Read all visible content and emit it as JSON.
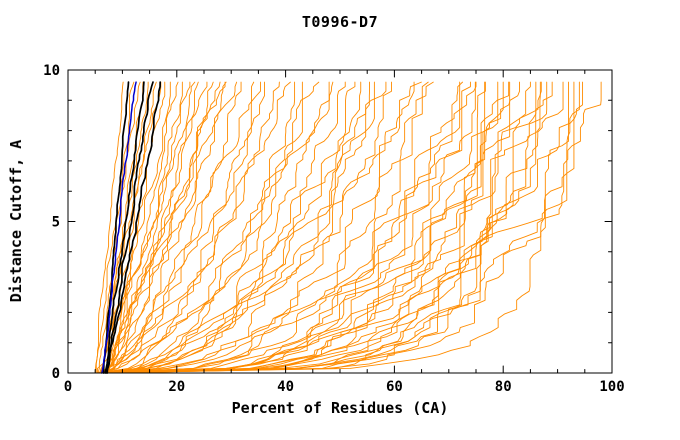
{
  "title": "T0996-D7",
  "chart_data": {
    "type": "line",
    "title": "T0996-D7",
    "xlabel": "Percent of Residues (CA)",
    "ylabel": "Distance Cutoff, A",
    "xlim": [
      0,
      100
    ],
    "ylim": [
      0,
      10
    ],
    "xticks": [
      0,
      20,
      40,
      60,
      80,
      100
    ],
    "yticks": [
      0,
      5,
      10
    ],
    "x_minor_step": 5,
    "y_minor_step": 1,
    "curve_top_y": 9.6,
    "grid": false,
    "legend": "none",
    "colors": {
      "background": "#ffffff",
      "axis": "#000000",
      "tick_text": "#000000",
      "orange": "#ff8c00",
      "black": "#000000",
      "blue": "#0000cd"
    },
    "curve_format": [
      "start_x_at_y0",
      "end_x_at_top",
      "shape_exponent",
      "seed"
    ],
    "series": [
      {
        "name": "orange-curves",
        "color": "#ff8c00",
        "width": 0.9,
        "jitter": 0.06,
        "curves": [
          [
            5.0,
            10.5,
            1.2,
            11
          ],
          [
            5.2,
            12,
            1.1,
            12
          ],
          [
            5.5,
            13,
            1.0,
            13
          ],
          [
            6.0,
            14,
            0.95,
            14
          ],
          [
            6.2,
            15,
            1.0,
            15
          ],
          [
            5.8,
            16,
            0.9,
            16
          ],
          [
            6.5,
            17,
            0.95,
            17
          ],
          [
            7.0,
            18,
            0.9,
            18
          ],
          [
            6.8,
            19,
            0.85,
            19
          ],
          [
            7.2,
            20,
            0.9,
            20
          ],
          [
            5.4,
            21,
            0.8,
            21
          ],
          [
            6.1,
            22,
            0.85,
            22
          ],
          [
            6.6,
            23,
            0.8,
            23
          ],
          [
            7.4,
            24,
            0.8,
            24
          ],
          [
            5.9,
            25,
            0.75,
            25
          ],
          [
            6.3,
            26,
            0.78,
            26
          ],
          [
            7.1,
            27,
            0.75,
            27
          ],
          [
            6.7,
            28,
            0.72,
            28
          ],
          [
            5.6,
            29,
            0.7,
            29
          ],
          [
            7.3,
            30,
            0.7,
            30
          ],
          [
            5.5,
            32,
            0.6,
            31
          ],
          [
            6.0,
            34,
            0.62,
            32
          ],
          [
            6.5,
            36,
            0.58,
            33
          ],
          [
            5.8,
            38,
            0.55,
            34
          ],
          [
            6.2,
            40,
            0.55,
            35
          ],
          [
            7.0,
            42,
            0.52,
            36
          ],
          [
            5.4,
            44,
            0.5,
            37
          ],
          [
            6.6,
            46,
            0.5,
            38
          ],
          [
            6.1,
            48,
            0.48,
            39
          ],
          [
            5.7,
            50,
            0.45,
            40
          ],
          [
            6.9,
            52,
            0.45,
            41
          ],
          [
            6.4,
            54,
            0.42,
            42
          ],
          [
            5.9,
            56,
            0.4,
            43
          ],
          [
            6.3,
            58,
            0.4,
            44
          ],
          [
            7.2,
            60,
            0.38,
            45
          ],
          [
            5.6,
            35,
            0.6,
            46
          ],
          [
            6.8,
            45,
            0.5,
            47
          ],
          [
            6.0,
            55,
            0.42,
            48
          ],
          [
            5.5,
            62,
            0.35,
            51
          ],
          [
            6.0,
            64,
            0.33,
            52
          ],
          [
            6.5,
            66,
            0.32,
            53
          ],
          [
            5.8,
            68,
            0.3,
            54
          ],
          [
            6.2,
            70,
            0.3,
            55
          ],
          [
            7.0,
            72,
            0.28,
            56
          ],
          [
            5.4,
            74,
            0.27,
            57
          ],
          [
            6.6,
            76,
            0.26,
            58
          ],
          [
            6.1,
            78,
            0.25,
            59
          ],
          [
            5.7,
            80,
            0.24,
            60
          ],
          [
            6.9,
            82,
            0.23,
            61
          ],
          [
            6.4,
            84,
            0.22,
            62
          ],
          [
            5.9,
            86,
            0.21,
            63
          ],
          [
            6.3,
            88,
            0.2,
            64
          ],
          [
            7.2,
            90,
            0.19,
            65
          ],
          [
            5.6,
            92,
            0.18,
            66
          ],
          [
            6.8,
            94,
            0.17,
            67
          ],
          [
            6.0,
            96,
            0.16,
            68
          ],
          [
            5.2,
            75,
            0.26,
            69
          ],
          [
            6.7,
            79,
            0.24,
            70
          ],
          [
            7.1,
            83,
            0.22,
            71
          ],
          [
            5.3,
            85,
            0.21,
            72
          ],
          [
            6.5,
            87,
            0.2,
            73
          ],
          [
            5.8,
            89,
            0.19,
            74
          ],
          [
            6.2,
            91,
            0.18,
            75
          ],
          [
            7.0,
            81,
            0.23,
            76
          ],
          [
            5.5,
            77,
            0.25,
            77
          ],
          [
            6.4,
            73,
            0.28,
            78
          ]
        ]
      },
      {
        "name": "black-curves",
        "color": "#000000",
        "width": 1.7,
        "jitter": 0.04,
        "curves": [
          [
            6.5,
            11,
            1.0,
            1
          ],
          [
            6.8,
            14,
            1.0,
            2
          ],
          [
            7.0,
            15.5,
            1.0,
            4
          ],
          [
            7.2,
            17,
            0.95,
            3
          ]
        ]
      },
      {
        "name": "blue-curve",
        "color": "#0000cd",
        "width": 1.5,
        "jitter": 0.04,
        "curves": [
          [
            6.2,
            12.5,
            1.0,
            9
          ]
        ]
      }
    ]
  }
}
